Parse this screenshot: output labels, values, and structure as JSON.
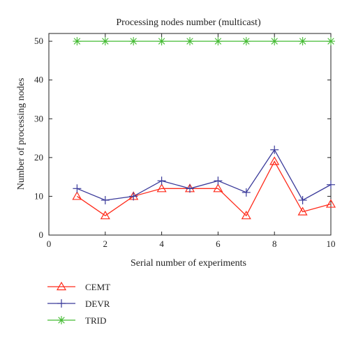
{
  "chart_data": {
    "type": "line",
    "title": "Processing nodes number (multicast)",
    "xlabel": "Serial number of experiments",
    "ylabel": "Number of processing nodes",
    "xlim": [
      0,
      10
    ],
    "ylim": [
      0,
      52
    ],
    "xticks": [
      0,
      2,
      4,
      6,
      8,
      10
    ],
    "yticks": [
      0,
      10,
      20,
      30,
      40,
      50
    ],
    "grid": false,
    "legend_position": "bottom-left, outside plot",
    "x": [
      1,
      2,
      3,
      4,
      5,
      6,
      7,
      8,
      9,
      10
    ],
    "series": [
      {
        "name": "CEMT",
        "color": "#ff2a1a",
        "marker": "triangle",
        "values": [
          10,
          5,
          10,
          12,
          12,
          12,
          5,
          19,
          6,
          8
        ]
      },
      {
        "name": "DEVR",
        "color": "#3a3a9a",
        "marker": "plus",
        "values": [
          12,
          9,
          10,
          14,
          12,
          14,
          11,
          22,
          9,
          13
        ]
      },
      {
        "name": "TRID",
        "color": "#44bb33",
        "marker": "asterisk",
        "values": [
          50,
          50,
          50,
          50,
          50,
          50,
          50,
          50,
          50,
          50
        ]
      }
    ]
  }
}
